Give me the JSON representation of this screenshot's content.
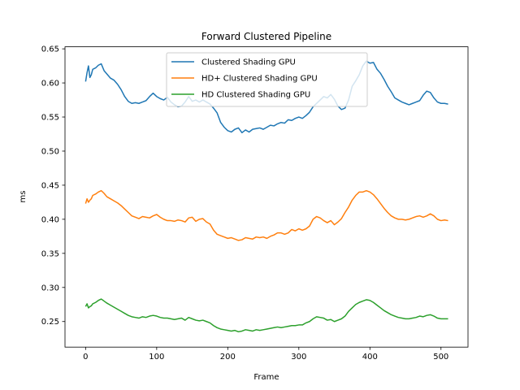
{
  "chart_data": {
    "type": "line",
    "title": "Forward Clustered Pipeline",
    "xlabel": "Frame",
    "ylabel": "ms",
    "xlim": [
      -29,
      538
    ],
    "ylim": [
      0.2125,
      0.653
    ],
    "xticks": [
      0,
      100,
      200,
      300,
      400,
      500
    ],
    "yticks": [
      0.25,
      0.3,
      0.35,
      0.4,
      0.45,
      0.5,
      0.55,
      0.6,
      0.65
    ],
    "ytick_labels": [
      "0.25",
      "0.30",
      "0.35",
      "0.40",
      "0.45",
      "0.50",
      "0.55",
      "0.60",
      "0.65"
    ],
    "grid": false,
    "legend_position": "upper center",
    "series": [
      {
        "name": "Clustered Shading GPU",
        "color": "#1f77b4",
        "x": [
          0,
          2,
          4,
          6,
          8,
          10,
          14,
          18,
          22,
          26,
          30,
          35,
          40,
          45,
          50,
          55,
          60,
          65,
          70,
          75,
          80,
          85,
          90,
          95,
          100,
          105,
          110,
          115,
          120,
          125,
          130,
          135,
          140,
          145,
          150,
          155,
          160,
          165,
          170,
          175,
          180,
          185,
          190,
          195,
          200,
          205,
          210,
          215,
          220,
          225,
          230,
          235,
          240,
          245,
          250,
          255,
          260,
          265,
          270,
          275,
          280,
          285,
          290,
          295,
          300,
          305,
          310,
          315,
          320,
          325,
          330,
          335,
          340,
          345,
          350,
          355,
          360,
          365,
          370,
          375,
          380,
          385,
          390,
          395,
          400,
          405,
          410,
          415,
          420,
          425,
          430,
          435,
          440,
          445,
          450,
          455,
          460,
          465,
          470,
          475,
          480,
          485,
          490,
          495,
          500,
          505,
          510
        ],
        "y": [
          0.602,
          0.615,
          0.625,
          0.608,
          0.612,
          0.62,
          0.622,
          0.626,
          0.628,
          0.618,
          0.613,
          0.607,
          0.604,
          0.598,
          0.59,
          0.58,
          0.573,
          0.57,
          0.571,
          0.57,
          0.572,
          0.574,
          0.58,
          0.585,
          0.58,
          0.577,
          0.575,
          0.579,
          0.572,
          0.568,
          0.565,
          0.566,
          0.572,
          0.58,
          0.573,
          0.575,
          0.572,
          0.575,
          0.572,
          0.569,
          0.563,
          0.556,
          0.542,
          0.535,
          0.53,
          0.528,
          0.532,
          0.534,
          0.527,
          0.531,
          0.528,
          0.532,
          0.533,
          0.534,
          0.532,
          0.535,
          0.538,
          0.537,
          0.54,
          0.542,
          0.541,
          0.546,
          0.545,
          0.548,
          0.55,
          0.548,
          0.552,
          0.557,
          0.565,
          0.57,
          0.575,
          0.58,
          0.578,
          0.583,
          0.576,
          0.566,
          0.561,
          0.563,
          0.575,
          0.595,
          0.603,
          0.612,
          0.625,
          0.632,
          0.629,
          0.63,
          0.62,
          0.614,
          0.605,
          0.595,
          0.587,
          0.578,
          0.575,
          0.572,
          0.57,
          0.568,
          0.57,
          0.572,
          0.574,
          0.582,
          0.588,
          0.586,
          0.578,
          0.572,
          0.57,
          0.57,
          0.569
        ]
      },
      {
        "name": "HD+ Clustered Shading GPU",
        "color": "#ff7f0e",
        "x": [
          0,
          2,
          4,
          6,
          8,
          10,
          14,
          18,
          22,
          26,
          30,
          35,
          40,
          45,
          50,
          55,
          60,
          65,
          70,
          75,
          80,
          85,
          90,
          95,
          100,
          105,
          110,
          115,
          120,
          125,
          130,
          135,
          140,
          145,
          150,
          155,
          160,
          165,
          170,
          175,
          180,
          185,
          190,
          195,
          200,
          205,
          210,
          215,
          220,
          225,
          230,
          235,
          240,
          245,
          250,
          255,
          260,
          265,
          270,
          275,
          280,
          285,
          290,
          295,
          300,
          305,
          310,
          315,
          320,
          325,
          330,
          335,
          340,
          345,
          350,
          355,
          360,
          365,
          370,
          375,
          380,
          385,
          390,
          395,
          400,
          405,
          410,
          415,
          420,
          425,
          430,
          435,
          440,
          445,
          450,
          455,
          460,
          465,
          470,
          475,
          480,
          485,
          490,
          495,
          500,
          505,
          510
        ],
        "y": [
          0.423,
          0.43,
          0.425,
          0.428,
          0.43,
          0.435,
          0.437,
          0.44,
          0.442,
          0.438,
          0.433,
          0.43,
          0.427,
          0.424,
          0.42,
          0.415,
          0.41,
          0.405,
          0.403,
          0.401,
          0.404,
          0.403,
          0.402,
          0.405,
          0.407,
          0.403,
          0.4,
          0.398,
          0.398,
          0.397,
          0.399,
          0.398,
          0.396,
          0.402,
          0.403,
          0.397,
          0.4,
          0.401,
          0.396,
          0.393,
          0.384,
          0.378,
          0.376,
          0.374,
          0.372,
          0.373,
          0.371,
          0.369,
          0.37,
          0.373,
          0.372,
          0.371,
          0.374,
          0.373,
          0.374,
          0.372,
          0.375,
          0.377,
          0.38,
          0.38,
          0.378,
          0.38,
          0.385,
          0.383,
          0.386,
          0.384,
          0.386,
          0.39,
          0.4,
          0.404,
          0.402,
          0.398,
          0.395,
          0.398,
          0.392,
          0.396,
          0.401,
          0.41,
          0.418,
          0.428,
          0.435,
          0.44,
          0.44,
          0.442,
          0.44,
          0.436,
          0.43,
          0.423,
          0.416,
          0.41,
          0.405,
          0.402,
          0.4,
          0.4,
          0.399,
          0.4,
          0.402,
          0.404,
          0.405,
          0.403,
          0.405,
          0.408,
          0.405,
          0.4,
          0.398,
          0.399,
          0.398
        ]
      },
      {
        "name": "HD Clustered Shading GPU",
        "color": "#2ca02c",
        "x": [
          0,
          2,
          4,
          6,
          8,
          10,
          14,
          18,
          22,
          26,
          30,
          35,
          40,
          45,
          50,
          55,
          60,
          65,
          70,
          75,
          80,
          85,
          90,
          95,
          100,
          105,
          110,
          115,
          120,
          125,
          130,
          135,
          140,
          145,
          150,
          155,
          160,
          165,
          170,
          175,
          180,
          185,
          190,
          195,
          200,
          205,
          210,
          215,
          220,
          225,
          230,
          235,
          240,
          245,
          250,
          255,
          260,
          265,
          270,
          275,
          280,
          285,
          290,
          295,
          300,
          305,
          310,
          315,
          320,
          325,
          330,
          335,
          340,
          345,
          350,
          355,
          360,
          365,
          370,
          375,
          380,
          385,
          390,
          395,
          400,
          405,
          410,
          415,
          420,
          425,
          430,
          435,
          440,
          445,
          450,
          455,
          460,
          465,
          470,
          475,
          480,
          485,
          490,
          495,
          500,
          505,
          510
        ],
        "y": [
          0.272,
          0.276,
          0.27,
          0.272,
          0.273,
          0.276,
          0.278,
          0.281,
          0.283,
          0.28,
          0.277,
          0.274,
          0.271,
          0.268,
          0.265,
          0.262,
          0.259,
          0.257,
          0.256,
          0.255,
          0.257,
          0.256,
          0.258,
          0.259,
          0.258,
          0.256,
          0.255,
          0.255,
          0.254,
          0.253,
          0.254,
          0.255,
          0.252,
          0.256,
          0.254,
          0.252,
          0.251,
          0.252,
          0.25,
          0.248,
          0.244,
          0.241,
          0.239,
          0.238,
          0.237,
          0.236,
          0.237,
          0.235,
          0.236,
          0.238,
          0.237,
          0.236,
          0.238,
          0.237,
          0.238,
          0.239,
          0.24,
          0.241,
          0.242,
          0.241,
          0.242,
          0.243,
          0.244,
          0.244,
          0.245,
          0.245,
          0.248,
          0.25,
          0.254,
          0.257,
          0.256,
          0.255,
          0.252,
          0.253,
          0.25,
          0.252,
          0.254,
          0.258,
          0.265,
          0.27,
          0.275,
          0.278,
          0.28,
          0.282,
          0.281,
          0.278,
          0.274,
          0.27,
          0.266,
          0.263,
          0.26,
          0.258,
          0.256,
          0.255,
          0.254,
          0.254,
          0.255,
          0.256,
          0.258,
          0.257,
          0.259,
          0.26,
          0.258,
          0.255,
          0.254,
          0.254,
          0.254
        ]
      }
    ]
  }
}
